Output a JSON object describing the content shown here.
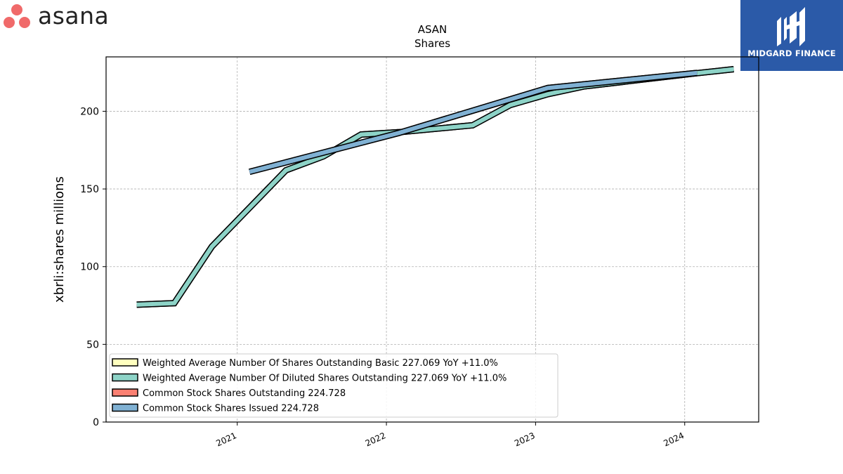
{
  "brand_left": {
    "name": "asana",
    "dot_color": "#f06a6a",
    "text_color": "#222222"
  },
  "brand_right": {
    "name": "MIDGARD FINANCE",
    "bg_color": "#2b5aa8"
  },
  "chart_data": {
    "type": "line",
    "title": "ASAN",
    "subtitle": "Shares",
    "ylabel": "xbrli:shares millions",
    "xlabel": "",
    "xlim": [
      "2020-02-15",
      "2024-06-30"
    ],
    "ylim": [
      0,
      235
    ],
    "yticks": [
      0,
      50,
      100,
      150,
      200
    ],
    "xticks": [
      "2021",
      "2022",
      "2023",
      "2024"
    ],
    "grid": true,
    "legend_position": "lower-left",
    "series": [
      {
        "name": "Weighted Average Number Of Shares Outstanding Basic",
        "legend_label": "Weighted Average Number Of Shares Outstanding Basic  227.069 YoY +11.0%",
        "color": "#ffffbf",
        "x": [
          "2020-04-30",
          "2020-07-31",
          "2020-10-31",
          "2021-04-30",
          "2021-07-31",
          "2021-10-31",
          "2022-01-31",
          "2022-07-31",
          "2022-10-31",
          "2023-01-31",
          "2023-04-30",
          "2024-01-31",
          "2024-04-30"
        ],
        "y": [
          75.5,
          76.5,
          113,
          162,
          171,
          185,
          186.5,
          191,
          204,
          211,
          216,
          224.5,
          227.1
        ]
      },
      {
        "name": "Weighted Average Number Of Diluted Shares Outstanding",
        "legend_label": "Weighted Average Number Of Diluted Shares Outstanding  227.069 YoY +11.0%",
        "color": "#8dd3c7",
        "x": [
          "2020-04-30",
          "2020-07-31",
          "2020-10-31",
          "2021-04-30",
          "2021-07-31",
          "2021-10-31",
          "2022-01-31",
          "2022-07-31",
          "2022-10-31",
          "2023-01-31",
          "2023-04-30",
          "2024-01-31",
          "2024-04-30"
        ],
        "y": [
          75.5,
          76.5,
          113,
          162,
          171,
          185,
          186.5,
          191,
          204,
          211,
          216,
          224.5,
          227.1
        ]
      },
      {
        "name": "Common Stock Shares Outstanding",
        "legend_label": "Common Stock Shares Outstanding  224.728",
        "color": "#fb8072",
        "x": [
          "2021-01-31",
          "2022-01-31",
          "2023-01-31",
          "2024-01-31"
        ],
        "y": [
          161,
          186,
          215,
          224.7
        ]
      },
      {
        "name": "Common Stock Shares Issued",
        "legend_label": "Common Stock Shares Issued  224.728",
        "color": "#80b1d3",
        "x": [
          "2021-01-31",
          "2022-01-31",
          "2023-01-31",
          "2024-01-31"
        ],
        "y": [
          161,
          186,
          215,
          224.7
        ]
      }
    ]
  }
}
